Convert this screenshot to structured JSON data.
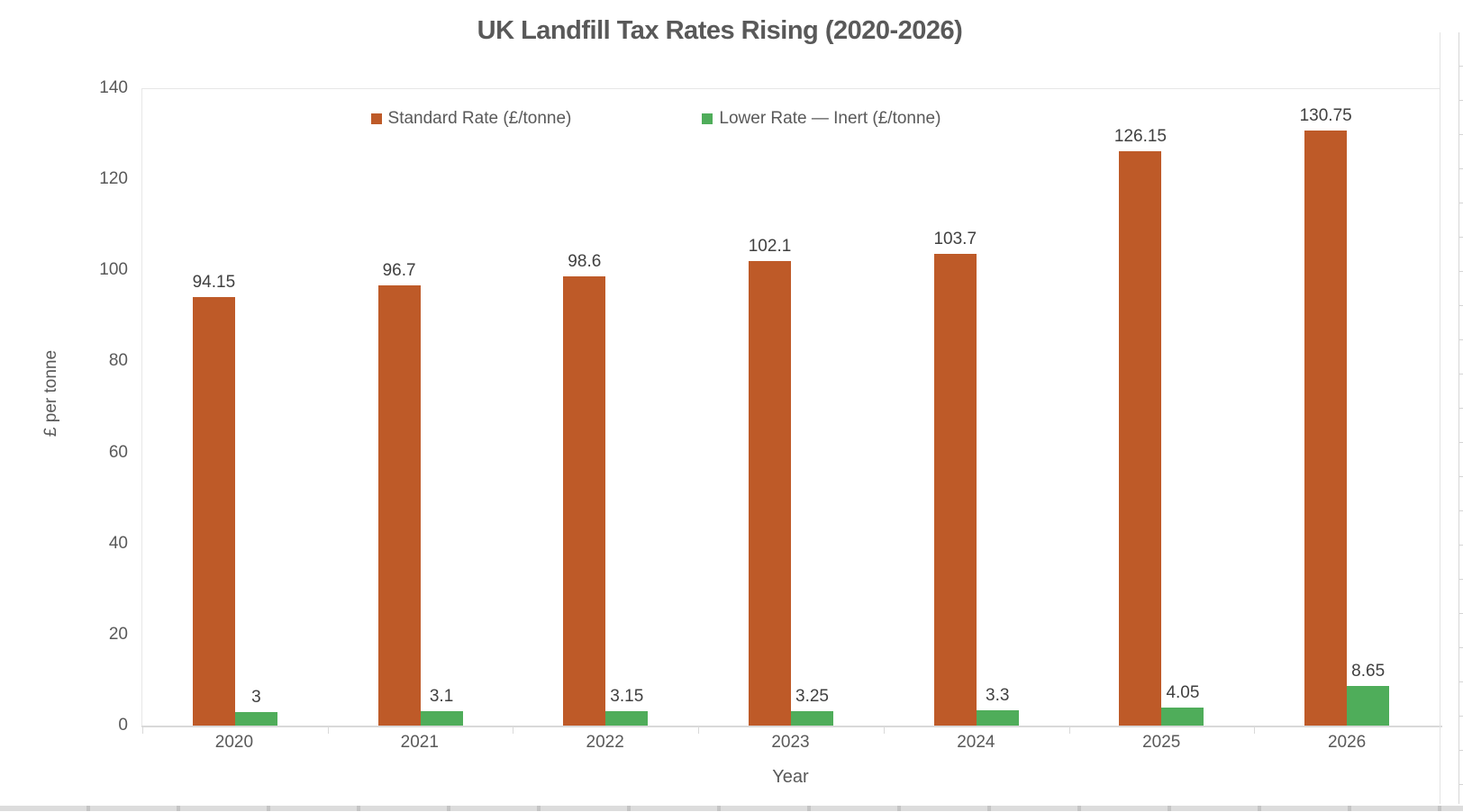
{
  "chart_data": {
    "type": "bar",
    "title": "UK Landfill Tax Rates Rising (2020-2026)",
    "categories": [
      "2020",
      "2021",
      "2022",
      "2023",
      "2024",
      "2025",
      "2026"
    ],
    "series": [
      {
        "name": "Standard Rate (£/tonne)",
        "color": "#BE5A28",
        "values": [
          94.15,
          96.7,
          98.6,
          102.1,
          103.7,
          126.15,
          130.75
        ]
      },
      {
        "name": "Lower Rate — Inert (£/tonne)",
        "color": "#4FAD5A",
        "values": [
          3,
          3.1,
          3.15,
          3.25,
          3.3,
          4.05,
          8.65
        ]
      }
    ],
    "xlabel": "Year",
    "ylabel": "£ per tonne",
    "ylim": [
      0,
      140
    ],
    "yticks": [
      0,
      20,
      40,
      60,
      80,
      100,
      120,
      140
    ],
    "grid": false,
    "legend_position": "top-center",
    "data_labels": true
  },
  "colors": {
    "title_text": "#595959",
    "axis_text": "#595959",
    "data_label_text": "#404040",
    "axis_line": "#D9D9D9",
    "plot_border": "#E7E7E7",
    "background": "#FFFFFF"
  }
}
